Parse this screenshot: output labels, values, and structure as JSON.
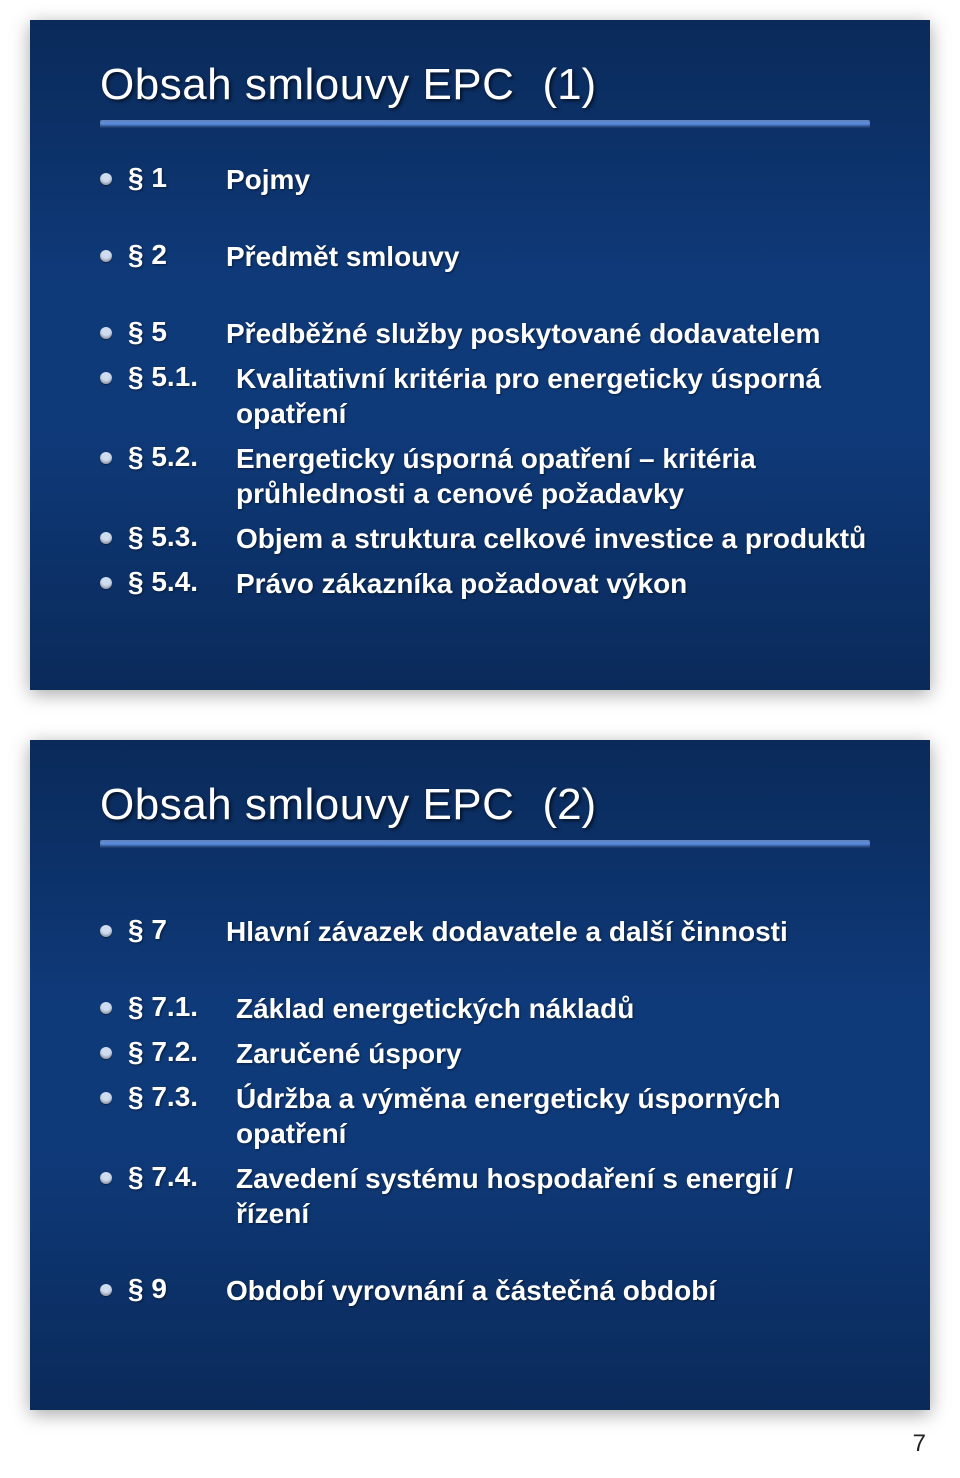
{
  "page_number": "7",
  "slide1": {
    "title": "Obsah smlouvy EPC",
    "title_num": "(1)",
    "items": [
      {
        "sec": "§ 1",
        "text": "Pojmy",
        "sub": false
      },
      {
        "sec": "§ 2",
        "text": "Předmět smlouvy",
        "sub": false
      },
      {
        "sec": "§ 5",
        "text": "Předběžné služby poskytované dodavatelem",
        "sub": false
      },
      {
        "sec": "§ 5.1.",
        "text": "Kvalitativní kritéria pro energeticky úsporná opatření",
        "sub": true
      },
      {
        "sec": "§ 5.2.",
        "text": "Energeticky úsporná opatření – kritéria průhlednosti a cenové požadavky",
        "sub": true
      },
      {
        "sec": "§ 5.3.",
        "text": "Objem a struktura celkové investice a produktů",
        "sub": true
      },
      {
        "sec": "§ 5.4.",
        "text": "Právo zákazníka požadovat výkon",
        "sub": true
      }
    ]
  },
  "slide2": {
    "title": "Obsah smlouvy EPC",
    "title_num": "(2)",
    "items": [
      {
        "sec": "§ 7",
        "text": "Hlavní závazek dodavatele a další činnosti",
        "sub": false
      },
      {
        "sec": "§ 7.1.",
        "text": "Základ energetických nákladů",
        "sub": true
      },
      {
        "sec": "§ 7.2.",
        "text": "Zaručené úspory",
        "sub": true
      },
      {
        "sec": "§ 7.3.",
        "text": "Údržba a výměna energeticky úsporných opatření",
        "sub": true
      },
      {
        "sec": "§ 7.4.",
        "text": "Zavedení systému hospodaření s energií / řízení",
        "sub": true
      },
      {
        "sec": "§ 9",
        "text": "Období vyrovnání a částečná období",
        "sub": false
      }
    ]
  }
}
